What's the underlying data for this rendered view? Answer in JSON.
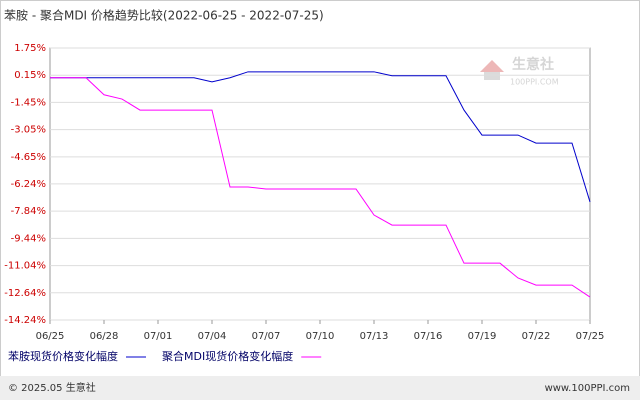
{
  "chart_data": {
    "type": "line",
    "title": "苯胺 - 聚合MDI 价格趋势比较(2022-06-25 - 2022-07-25)",
    "categories": [
      "06/25",
      null,
      null,
      "06/28",
      null,
      null,
      "07/01",
      null,
      null,
      "07/04",
      null,
      null,
      "07/07",
      null,
      null,
      "07/10",
      null,
      null,
      "07/13",
      null,
      null,
      "07/16",
      null,
      null,
      "07/19",
      null,
      null,
      "07/22",
      null,
      null,
      "07/25"
    ],
    "series": [
      {
        "name": "苯胺现货价格变化幅度",
        "color": "#0000cc",
        "values": [
          0,
          0,
          0,
          0,
          0,
          0,
          0,
          0,
          0,
          -0.24,
          0,
          0.35,
          0.35,
          0.35,
          0.35,
          0.35,
          0.35,
          0.35,
          0.35,
          0.12,
          0.12,
          0.12,
          0.12,
          -1.9,
          -3.37,
          -3.37,
          -3.37,
          -3.84,
          -3.84,
          -3.84,
          -7.3
        ]
      },
      {
        "name": "聚合MDI现货价格变化幅度",
        "color": "#ff00ff",
        "values": [
          0,
          0,
          0,
          -1.0,
          -1.25,
          -1.9,
          -1.9,
          -1.9,
          -1.9,
          -1.9,
          -6.42,
          -6.42,
          -6.54,
          -6.54,
          -6.54,
          -6.54,
          -6.54,
          -6.54,
          -8.07,
          -8.66,
          -8.66,
          -8.66,
          -8.66,
          -10.9,
          -10.9,
          -10.9,
          -11.77,
          -12.19,
          -12.19,
          -12.19,
          -12.89
        ]
      }
    ],
    "ylim": [
      -14.24,
      1.75
    ],
    "yticks": [
      {
        "value": 1.75,
        "label": "1.75%"
      },
      {
        "value": 0.15,
        "label": "0.15%"
      },
      {
        "value": -1.45,
        "label": "-1.45%"
      },
      {
        "value": -3.05,
        "label": "-3.05%"
      },
      {
        "value": -4.65,
        "label": "-4.65%"
      },
      {
        "value": -6.24,
        "label": "-6.24%"
      },
      {
        "value": -7.84,
        "label": "-7.84%"
      },
      {
        "value": -9.44,
        "label": "-9.44%"
      },
      {
        "value": -11.04,
        "label": "-11.04%"
      },
      {
        "value": -12.64,
        "label": "-12.64%"
      },
      {
        "value": -14.24,
        "label": "-14.24%"
      }
    ],
    "grid": true,
    "watermark": "生意社",
    "watermark_sub": "100PPI.COM",
    "footer_left": "© 2025.05 生意社",
    "footer_right": "www.100PPI.com"
  }
}
